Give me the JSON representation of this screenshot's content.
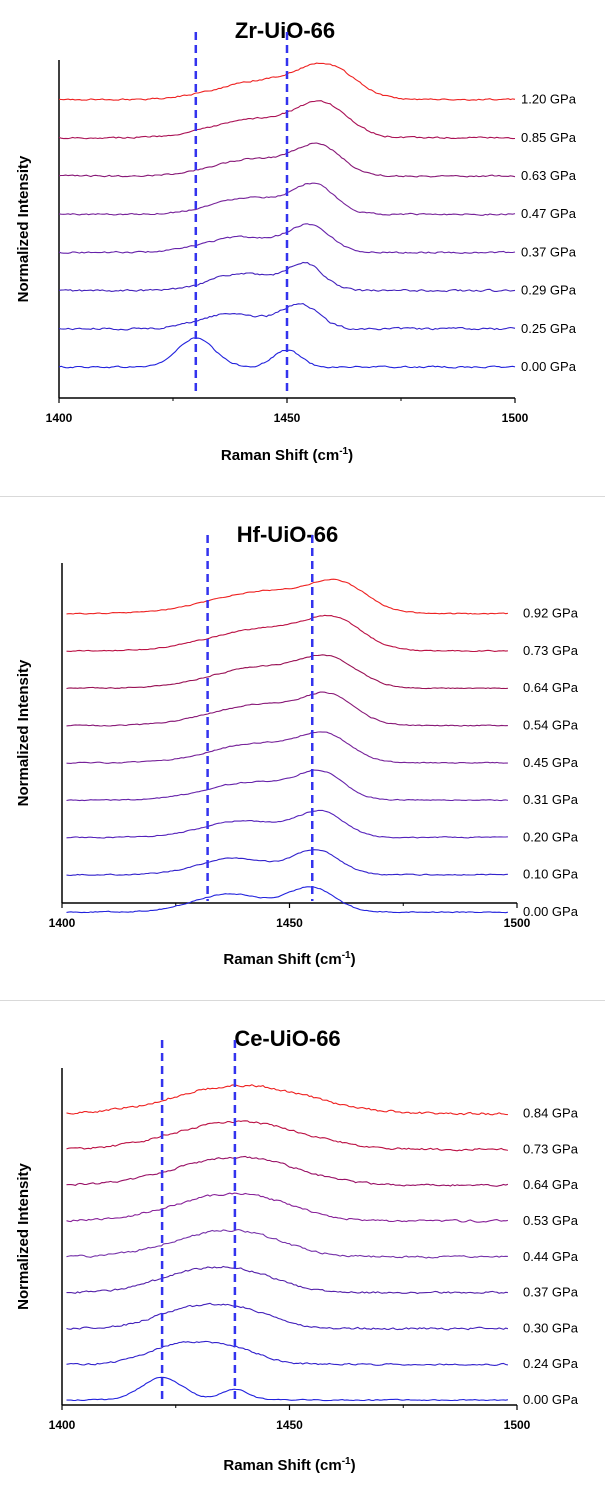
{
  "chart_data": [
    {
      "type": "line",
      "title": "Zr-UiO-66",
      "xlabel": "Raman Shift (cm",
      "xlabel_sup": "-1",
      "xlabel_end": ")",
      "ylabel": "Normalized Intensity",
      "xlim": [
        1400,
        1500
      ],
      "xticks": [
        1400,
        1450,
        1500
      ],
      "y_ticks_shown": false,
      "dashed_lines_x": [
        1430,
        1450
      ],
      "dashed_color": "#3333ee",
      "series": [
        {
          "name": "0.00 GPa",
          "color": "#2222dd",
          "baseline": 0.0,
          "peaks": [
            {
              "x": 1430,
              "h": 0.85,
              "w": 4
            },
            {
              "x": 1450,
              "h": 0.5,
              "w": 3
            }
          ],
          "noise": 0.04
        },
        {
          "name": "0.25 GPa",
          "color": "#3322cc",
          "baseline": 1.0,
          "peaks": [
            {
              "x": 1438,
              "h": 0.45,
              "w": 7
            },
            {
              "x": 1453,
              "h": 0.7,
              "w": 4
            }
          ],
          "noise": 0.05
        },
        {
          "name": "0.29 GPa",
          "color": "#4422bb",
          "baseline": 2.0,
          "peaks": [
            {
              "x": 1440,
              "h": 0.5,
              "w": 7
            },
            {
              "x": 1454,
              "h": 0.75,
              "w": 4
            }
          ],
          "noise": 0.05
        },
        {
          "name": "0.37 GPa",
          "color": "#6622aa",
          "baseline": 3.0,
          "peaks": [
            {
              "x": 1440,
              "h": 0.45,
              "w": 8
            },
            {
              "x": 1455,
              "h": 0.75,
              "w": 4.5
            }
          ],
          "noise": 0.04
        },
        {
          "name": "0.47 GPa",
          "color": "#772299",
          "baseline": 4.0,
          "peaks": [
            {
              "x": 1442,
              "h": 0.5,
              "w": 8
            },
            {
              "x": 1456,
              "h": 0.8,
              "w": 4.5
            }
          ],
          "noise": 0.04
        },
        {
          "name": "0.63 GPa",
          "color": "#881877",
          "baseline": 5.0,
          "peaks": [
            {
              "x": 1443,
              "h": 0.5,
              "w": 9
            },
            {
              "x": 1457,
              "h": 0.8,
              "w": 5
            }
          ],
          "noise": 0.04
        },
        {
          "name": "0.85 GPa",
          "color": "#aa1155",
          "baseline": 6.0,
          "peaks": [
            {
              "x": 1444,
              "h": 0.55,
              "w": 10
            },
            {
              "x": 1458,
              "h": 0.85,
              "w": 5.5
            }
          ],
          "noise": 0.04
        },
        {
          "name": "1.20 GPa",
          "color": "#ee2222",
          "baseline": 7.0,
          "peaks": [
            {
              "x": 1445,
              "h": 0.55,
              "w": 10
            },
            {
              "x": 1459,
              "h": 0.85,
              "w": 6
            }
          ],
          "noise": 0.04
        }
      ]
    },
    {
      "type": "line",
      "title": "Hf-UiO-66",
      "xlabel": "Raman Shift (cm",
      "xlabel_sup": "-1",
      "xlabel_end": ")",
      "ylabel": "Normalized Intensity",
      "xlim": [
        1400,
        1500
      ],
      "xticks": [
        1400,
        1450,
        1500
      ],
      "y_ticks_shown": false,
      "dashed_lines_x": [
        1432,
        1455
      ],
      "dashed_color": "#3333ee",
      "series": [
        {
          "name": "0.00 GPa",
          "color": "#2222dd",
          "baseline": 0.0,
          "peaks": [
            {
              "x": 1437,
              "h": 0.6,
              "w": 8
            },
            {
              "x": 1455,
              "h": 0.8,
              "w": 5
            }
          ],
          "noise": 0.03
        },
        {
          "name": "0.10 GPa",
          "color": "#3322cc",
          "baseline": 1.0,
          "peaks": [
            {
              "x": 1438,
              "h": 0.55,
              "w": 8
            },
            {
              "x": 1456,
              "h": 0.8,
              "w": 5
            }
          ],
          "noise": 0.03
        },
        {
          "name": "0.20 GPa",
          "color": "#5522bb",
          "baseline": 2.0,
          "peaks": [
            {
              "x": 1440,
              "h": 0.55,
              "w": 9
            },
            {
              "x": 1457,
              "h": 0.8,
              "w": 5
            }
          ],
          "noise": 0.03
        },
        {
          "name": "0.31 GPa",
          "color": "#6622aa",
          "baseline": 3.0,
          "peaks": [
            {
              "x": 1442,
              "h": 0.6,
              "w": 10
            },
            {
              "x": 1457,
              "h": 0.8,
              "w": 5
            }
          ],
          "noise": 0.03
        },
        {
          "name": "0.45 GPa",
          "color": "#772299",
          "baseline": 4.0,
          "peaks": [
            {
              "x": 1443,
              "h": 0.65,
              "w": 10
            },
            {
              "x": 1458,
              "h": 0.8,
              "w": 5.5
            }
          ],
          "noise": 0.03
        },
        {
          "name": "0.54 GPa",
          "color": "#881877",
          "baseline": 5.0,
          "peaks": [
            {
              "x": 1444,
              "h": 0.7,
              "w": 11
            },
            {
              "x": 1459,
              "h": 0.8,
              "w": 5.5
            }
          ],
          "noise": 0.03
        },
        {
          "name": "0.64 GPa",
          "color": "#991155",
          "baseline": 6.0,
          "peaks": [
            {
              "x": 1444,
              "h": 0.7,
              "w": 11
            },
            {
              "x": 1459,
              "h": 0.8,
              "w": 6
            }
          ],
          "noise": 0.03
        },
        {
          "name": "0.73 GPa",
          "color": "#bb1144",
          "baseline": 7.0,
          "peaks": [
            {
              "x": 1445,
              "h": 0.75,
              "w": 12
            },
            {
              "x": 1460,
              "h": 0.8,
              "w": 6
            }
          ],
          "noise": 0.03
        },
        {
          "name": "0.92 GPa",
          "color": "#ee2222",
          "baseline": 8.0,
          "peaks": [
            {
              "x": 1445,
              "h": 0.75,
              "w": 12
            },
            {
              "x": 1461,
              "h": 0.8,
              "w": 6
            }
          ],
          "noise": 0.03
        }
      ]
    },
    {
      "type": "line",
      "title": "Ce-UiO-66",
      "xlabel": "Raman Shift (cm",
      "xlabel_sup": "-1",
      "xlabel_end": ")",
      "ylabel": "Normalized Intensity",
      "xlim": [
        1400,
        1500
      ],
      "xticks": [
        1400,
        1450,
        1500
      ],
      "y_ticks_shown": false,
      "dashed_lines_x": [
        1422,
        1438
      ],
      "dashed_color": "#3333ee",
      "series": [
        {
          "name": "0.00 GPa",
          "color": "#2222dd",
          "baseline": 0.0,
          "peaks": [
            {
              "x": 1422,
              "h": 0.75,
              "w": 4.5
            },
            {
              "x": 1438,
              "h": 0.35,
              "w": 3
            }
          ],
          "noise": 0.03
        },
        {
          "name": "0.24 GPa",
          "color": "#3322cc",
          "baseline": 1.0,
          "peaks": [
            {
              "x": 1426,
              "h": 0.65,
              "w": 7
            },
            {
              "x": 1438,
              "h": 0.45,
              "w": 6
            }
          ],
          "noise": 0.05
        },
        {
          "name": "0.30 GPa",
          "color": "#4422bb",
          "baseline": 2.0,
          "peaks": [
            {
              "x": 1428,
              "h": 0.6,
              "w": 8
            },
            {
              "x": 1440,
              "h": 0.5,
              "w": 7
            }
          ],
          "noise": 0.06
        },
        {
          "name": "0.37 GPa",
          "color": "#5522aa",
          "baseline": 3.0,
          "peaks": [
            {
              "x": 1429,
              "h": 0.6,
              "w": 9
            },
            {
              "x": 1441,
              "h": 0.5,
              "w": 8
            }
          ],
          "noise": 0.06
        },
        {
          "name": "0.44 GPa",
          "color": "#7733aa",
          "baseline": 4.0,
          "peaks": [
            {
              "x": 1431,
              "h": 0.55,
              "w": 10
            },
            {
              "x": 1442,
              "h": 0.5,
              "w": 9
            }
          ],
          "noise": 0.06
        },
        {
          "name": "0.53 GPa",
          "color": "#882299",
          "baseline": 5.0,
          "peaks": [
            {
              "x": 1432,
              "h": 0.55,
              "w": 11
            },
            {
              "x": 1443,
              "h": 0.5,
              "w": 10
            }
          ],
          "noise": 0.06
        },
        {
          "name": "0.64 GPa",
          "color": "#991166",
          "baseline": 6.0,
          "peaks": [
            {
              "x": 1433,
              "h": 0.55,
              "w": 12
            },
            {
              "x": 1444,
              "h": 0.5,
              "w": 11
            }
          ],
          "noise": 0.06
        },
        {
          "name": "0.73 GPa",
          "color": "#bb1144",
          "baseline": 7.0,
          "peaks": [
            {
              "x": 1433,
              "h": 0.55,
              "w": 12
            },
            {
              "x": 1445,
              "h": 0.5,
              "w": 12
            }
          ],
          "noise": 0.06
        },
        {
          "name": "0.84 GPa",
          "color": "#ee2222",
          "baseline": 8.0,
          "peaks": [
            {
              "x": 1434,
              "h": 0.55,
              "w": 13
            },
            {
              "x": 1446,
              "h": 0.5,
              "w": 13
            }
          ],
          "noise": 0.07
        }
      ]
    }
  ]
}
